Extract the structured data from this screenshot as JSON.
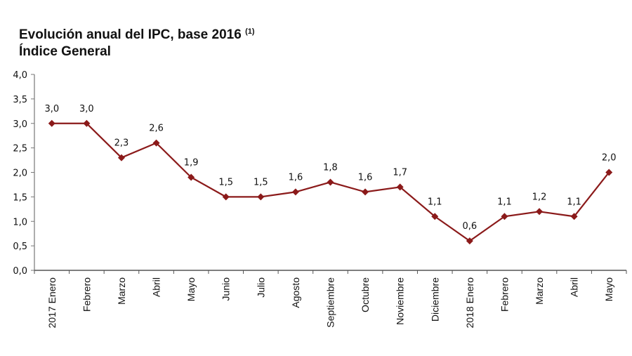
{
  "chart_data": {
    "type": "line",
    "title": "Evolución anual del IPC, base 2016",
    "title_note": "(1)",
    "subtitle": "Índice General",
    "xlabel": "",
    "ylabel": "",
    "categories": [
      "2017 Enero",
      "Febrero",
      "Marzo",
      "Abril",
      "Mayo",
      "Junio",
      "Julio",
      "Agosto",
      "Septiembre",
      "Octubre",
      "Noviembre",
      "Diciembre",
      "2018 Enero",
      "Febrero",
      "Marzo",
      "Abril",
      "Mayo"
    ],
    "values": [
      3.0,
      3.0,
      2.3,
      2.6,
      1.9,
      1.5,
      1.5,
      1.6,
      1.8,
      1.6,
      1.7,
      1.1,
      0.6,
      1.1,
      1.2,
      1.1,
      2.0
    ],
    "data_labels": [
      "3,0",
      "3,0",
      "2,3",
      "2,6",
      "1,9",
      "1,5",
      "1,5",
      "1,6",
      "1,8",
      "1,6",
      "1,7",
      "1,1",
      "0,6",
      "1,1",
      "1,2",
      "1,1",
      "2,0"
    ],
    "ylim": [
      0,
      4
    ],
    "yticks": [
      "0,0",
      "0,5",
      "1,0",
      "1,5",
      "2,0",
      "2,5",
      "3,0",
      "3,5",
      "4,0"
    ],
    "grid": false,
    "legend": "none",
    "marker": "diamond",
    "series_color": "#8B1A1A"
  }
}
